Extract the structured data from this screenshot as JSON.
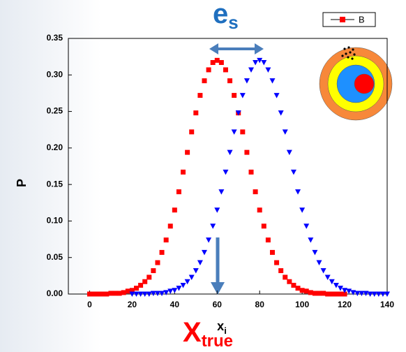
{
  "chart_data": {
    "type": "scatter",
    "y_label": "P",
    "x_label": {
      "text": "x",
      "sub": "i"
    },
    "annotations": [
      {
        "text": "e",
        "sub": "s",
        "color": "#1f6fbf"
      },
      {
        "text": "X",
        "sub": "true",
        "color": "#ff0000"
      }
    ],
    "xlim": [
      -10,
      140
    ],
    "xticks": [
      0,
      20,
      40,
      60,
      80,
      100,
      120,
      140
    ],
    "ylim": [
      0,
      0.35
    ],
    "yticks": [
      {
        "value": 0,
        "label": "0.00"
      },
      {
        "value": 0.05,
        "label": "0.05"
      },
      {
        "value": 0.1,
        "label": "0.10"
      },
      {
        "value": 0.15,
        "label": "0.15"
      },
      {
        "value": 0.2,
        "label": "0.20"
      },
      {
        "value": 0.25,
        "label": "0.25"
      },
      {
        "value": 0.3,
        "label": "0.30"
      },
      {
        "value": 0.35,
        "label": "0.35"
      }
    ],
    "series": [
      {
        "name": "B",
        "color": "#ff0000",
        "marker": "square",
        "x": [
          0,
          2,
          4,
          6,
          8,
          10,
          12,
          14,
          16,
          18,
          20,
          22,
          24,
          26,
          28,
          30,
          32,
          34,
          36,
          38,
          40,
          42,
          44,
          46,
          48,
          50,
          52,
          54,
          56,
          58,
          60,
          62,
          64,
          66,
          68,
          70,
          72,
          74,
          76,
          78,
          80,
          82,
          84,
          86,
          88,
          90,
          92,
          94,
          96,
          98,
          100,
          102,
          104,
          106,
          108,
          110,
          112,
          114,
          116,
          118,
          120
        ],
        "values": [
          0,
          0,
          0,
          0,
          0,
          0.001,
          0.001,
          0.001,
          0.002,
          0.004,
          0.005,
          0.008,
          0.012,
          0.017,
          0.023,
          0.032,
          0.043,
          0.057,
          0.074,
          0.093,
          0.115,
          0.14,
          0.167,
          0.194,
          0.222,
          0.248,
          0.272,
          0.292,
          0.307,
          0.317,
          0.32,
          0.317,
          0.307,
          0.292,
          0.272,
          0.248,
          0.222,
          0.194,
          0.167,
          0.14,
          0.115,
          0.093,
          0.074,
          0.057,
          0.043,
          0.032,
          0.023,
          0.017,
          0.012,
          0.008,
          0.005,
          0.004,
          0.002,
          0.001,
          0.001,
          0.001,
          0,
          0,
          0,
          0,
          0
        ]
      },
      {
        "color": "#0000ff",
        "marker": "triangle-down",
        "x": [
          20,
          22,
          24,
          26,
          28,
          30,
          32,
          34,
          36,
          38,
          40,
          42,
          44,
          46,
          48,
          50,
          52,
          54,
          56,
          58,
          60,
          62,
          64,
          66,
          68,
          70,
          72,
          74,
          76,
          78,
          80,
          82,
          84,
          86,
          88,
          90,
          92,
          94,
          96,
          98,
          100,
          102,
          104,
          106,
          108,
          110,
          112,
          114,
          116,
          118,
          120,
          122,
          124,
          126,
          128,
          130,
          132,
          134,
          136,
          138,
          140
        ],
        "values": [
          0,
          0,
          0,
          0,
          0,
          0.001,
          0.001,
          0.001,
          0.002,
          0.004,
          0.005,
          0.008,
          0.012,
          0.017,
          0.023,
          0.032,
          0.043,
          0.057,
          0.074,
          0.093,
          0.115,
          0.14,
          0.167,
          0.194,
          0.222,
          0.248,
          0.272,
          0.292,
          0.307,
          0.317,
          0.32,
          0.317,
          0.307,
          0.292,
          0.272,
          0.248,
          0.222,
          0.194,
          0.167,
          0.14,
          0.115,
          0.093,
          0.074,
          0.057,
          0.043,
          0.032,
          0.023,
          0.017,
          0.012,
          0.008,
          0.005,
          0.004,
          0.002,
          0.001,
          0.001,
          0.001,
          0,
          0,
          0,
          0,
          0
        ]
      }
    ]
  }
}
